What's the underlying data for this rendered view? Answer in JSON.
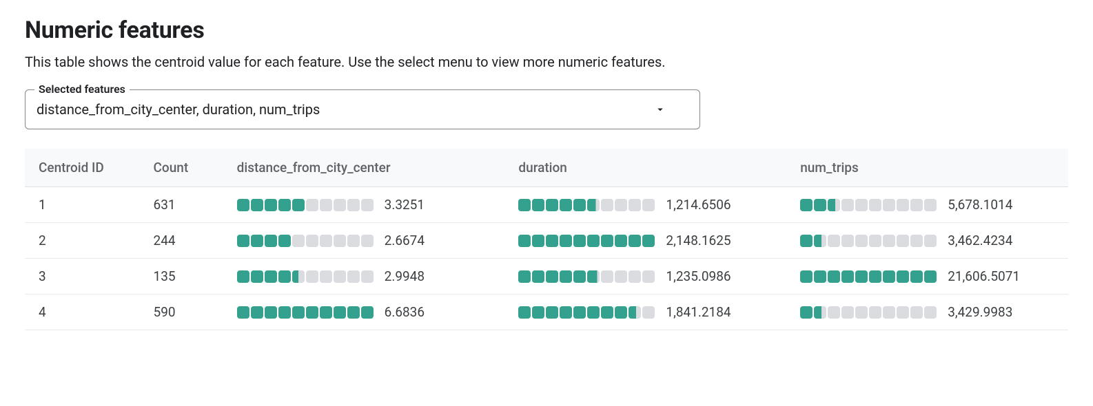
{
  "title": "Numeric features",
  "description": "This table shows the centroid value for each feature. Use the select menu to view more numeric features.",
  "select": {
    "label": "Selected features",
    "value": "distance_from_city_center, duration, num_trips"
  },
  "table": {
    "bar_segments": 10,
    "bar_fill_color": "#34a18e",
    "bar_empty_color": "#dadce0",
    "columns": {
      "id_header": "Centroid ID",
      "count_header": "Count",
      "metrics": [
        {
          "key": "distance_from_city_center",
          "header": "distance_from_city_center"
        },
        {
          "key": "duration",
          "header": "duration"
        },
        {
          "key": "num_trips",
          "header": "num_trips"
        }
      ]
    },
    "column_widths": {
      "id": "11%",
      "count": "8%",
      "metric": "27%"
    },
    "rows": [
      {
        "id": "1",
        "count": "631",
        "metrics": {
          "distance_from_city_center": {
            "value": "3.3251",
            "fill": 5.0
          },
          "duration": {
            "value": "1,214.6506",
            "fill": 5.7
          },
          "num_trips": {
            "value": "5,678.1014",
            "fill": 2.6
          }
        }
      },
      {
        "id": "2",
        "count": "244",
        "metrics": {
          "distance_from_city_center": {
            "value": "2.6674",
            "fill": 4.0
          },
          "duration": {
            "value": "2,148.1625",
            "fill": 10.0
          },
          "num_trips": {
            "value": "3,462.4234",
            "fill": 1.6
          }
        }
      },
      {
        "id": "3",
        "count": "135",
        "metrics": {
          "distance_from_city_center": {
            "value": "2.9948",
            "fill": 4.5
          },
          "duration": {
            "value": "1,235.0986",
            "fill": 5.8
          },
          "num_trips": {
            "value": "21,606.5071",
            "fill": 10.0
          }
        }
      },
      {
        "id": "4",
        "count": "590",
        "metrics": {
          "distance_from_city_center": {
            "value": "6.6836",
            "fill": 10.0
          },
          "duration": {
            "value": "1,841.2184",
            "fill": 8.6
          },
          "num_trips": {
            "value": "3,429.9983",
            "fill": 1.6
          }
        }
      }
    ]
  }
}
